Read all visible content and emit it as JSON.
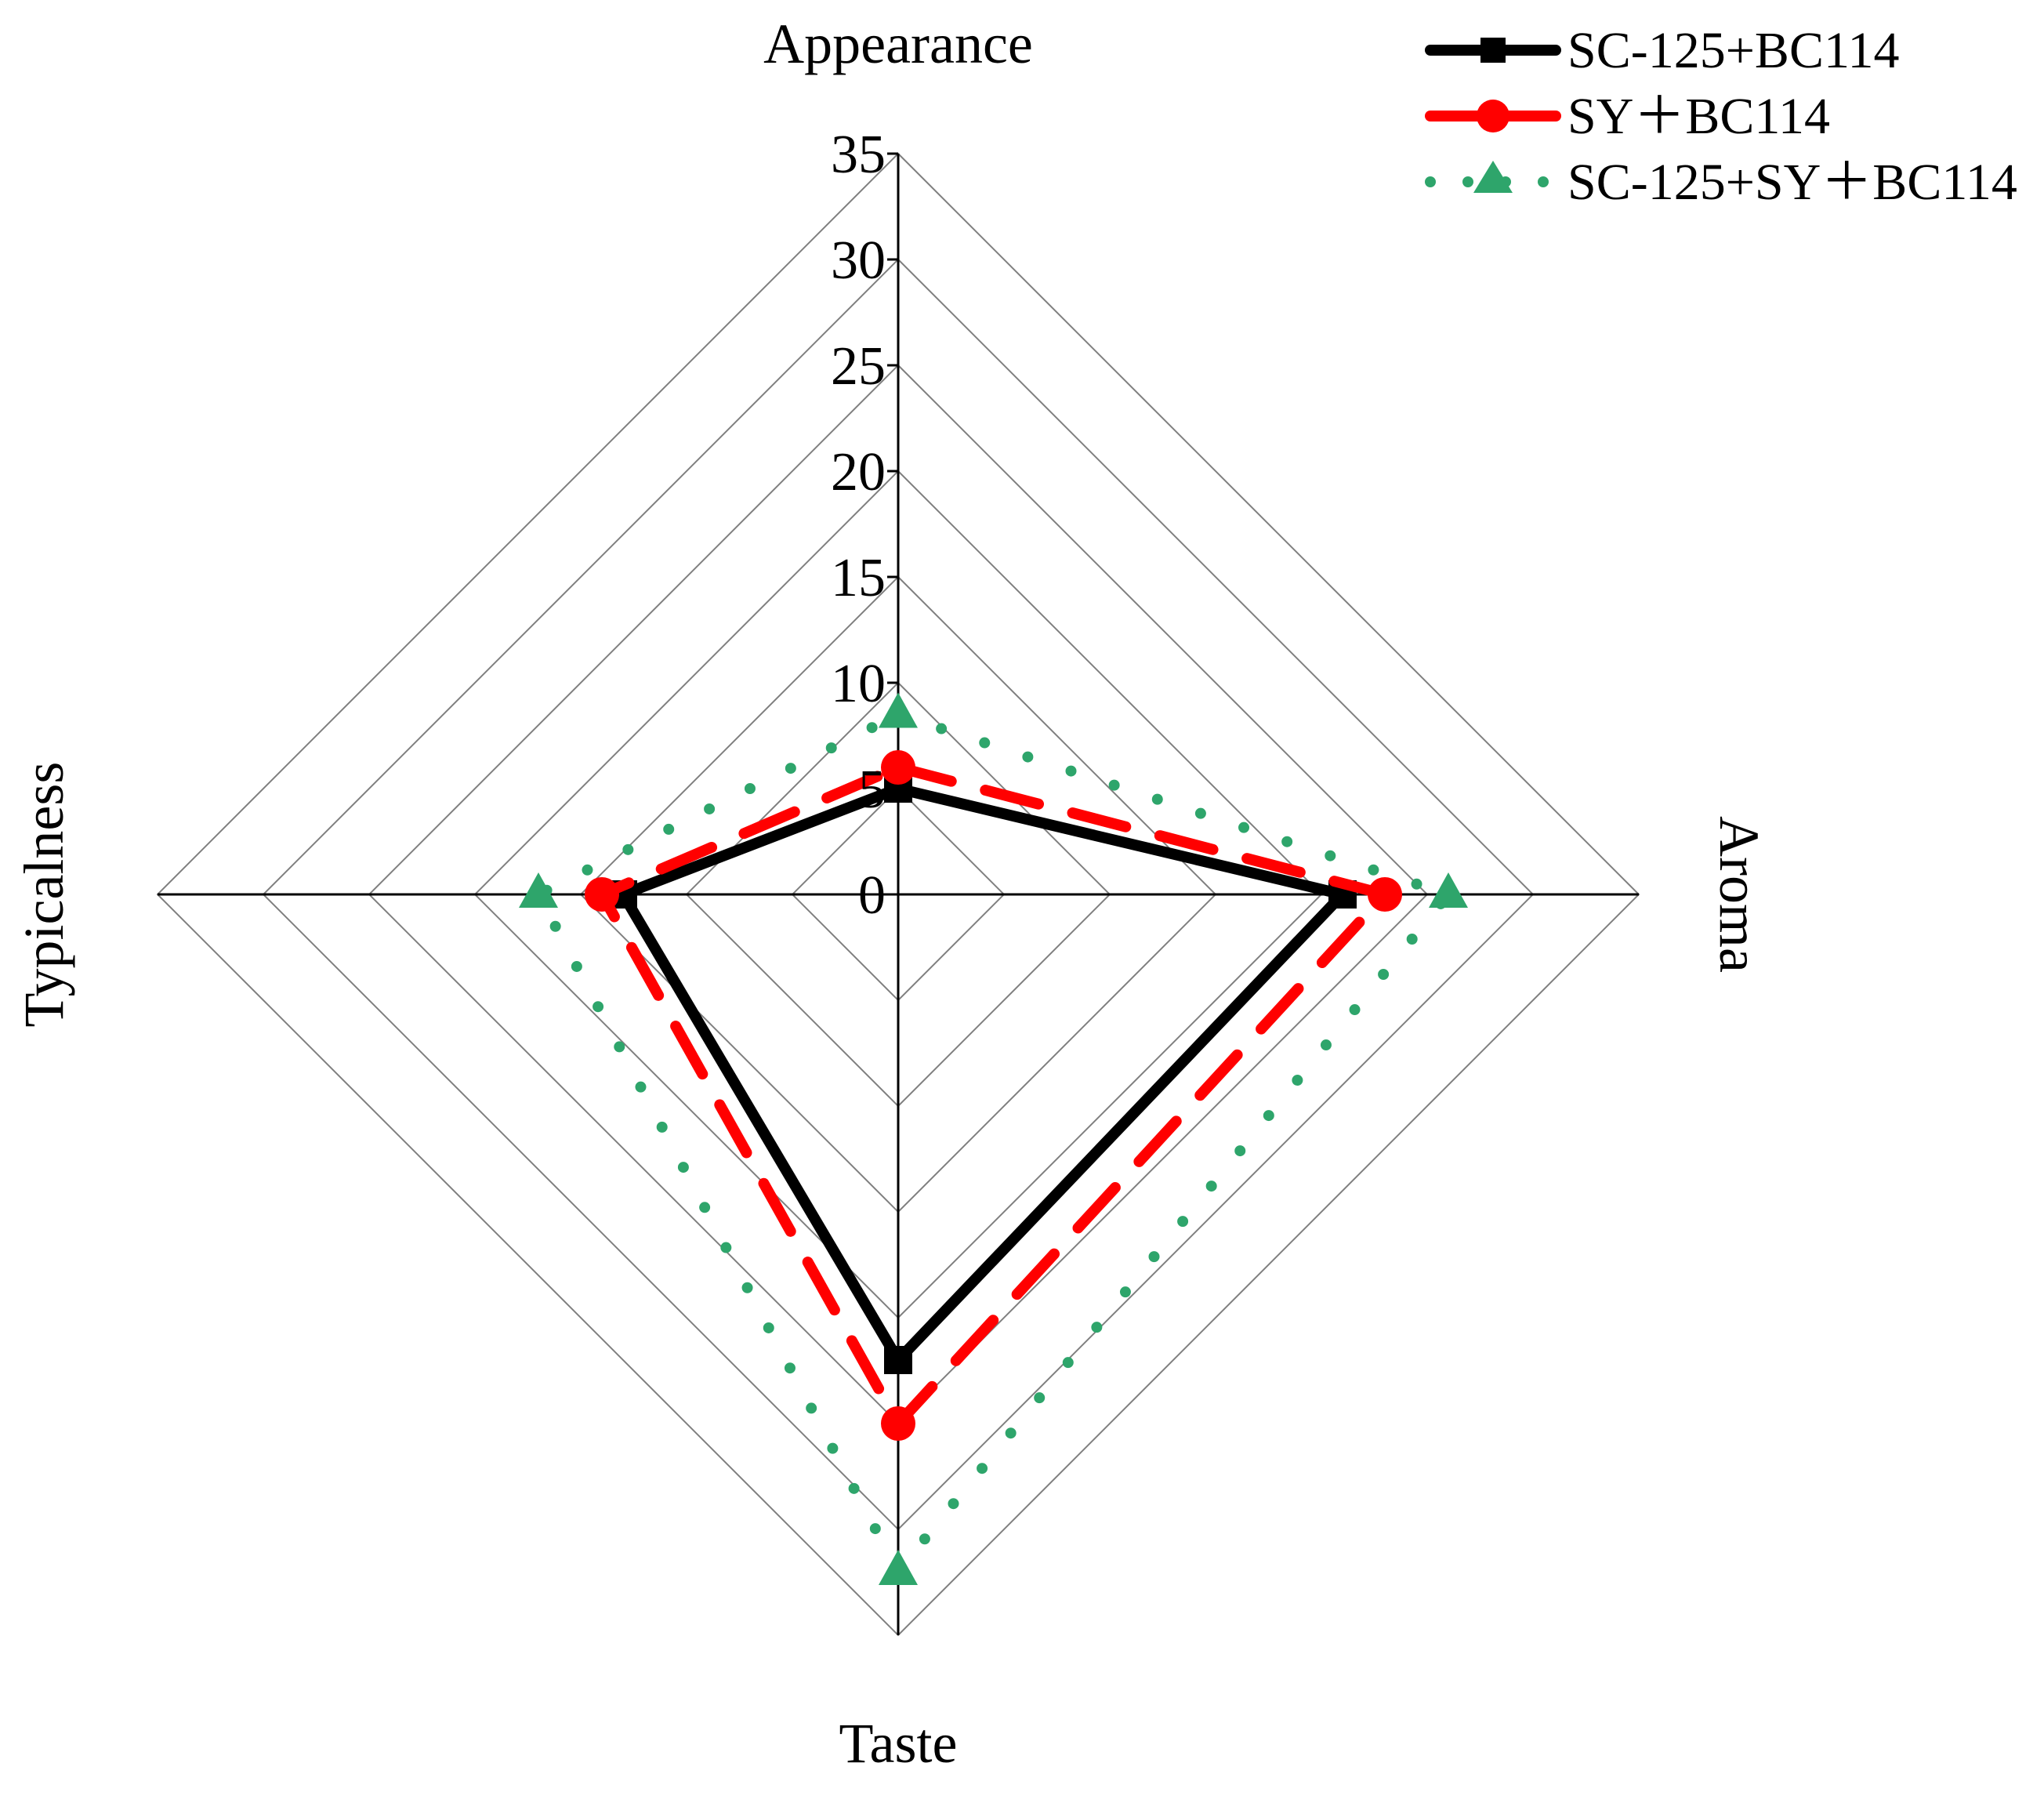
{
  "chart_data": {
    "type": "radar",
    "axes": [
      "Appearance",
      "Aroma",
      "Taste",
      "Typicalness"
    ],
    "rlim": [
      0,
      35
    ],
    "rticks": [
      "0",
      "5",
      "10",
      "15",
      "20",
      "25",
      "30",
      "35"
    ],
    "grid": true,
    "legend_position": "top-right",
    "series": [
      {
        "name": "SC-125+BC114",
        "values": [
          5,
          21,
          22,
          13
        ],
        "color": "#000000",
        "dash": "solid",
        "marker": "square"
      },
      {
        "name": "SY＋BC114",
        "values": [
          6,
          23,
          25,
          14
        ],
        "color": "#ff0000",
        "dash": "dashed",
        "marker": "circle"
      },
      {
        "name": "SC-125+SY＋BC114",
        "values": [
          8.5,
          26,
          32,
          17
        ],
        "color": "#2ea56b",
        "dash": "dotted",
        "marker": "triangle"
      }
    ]
  }
}
